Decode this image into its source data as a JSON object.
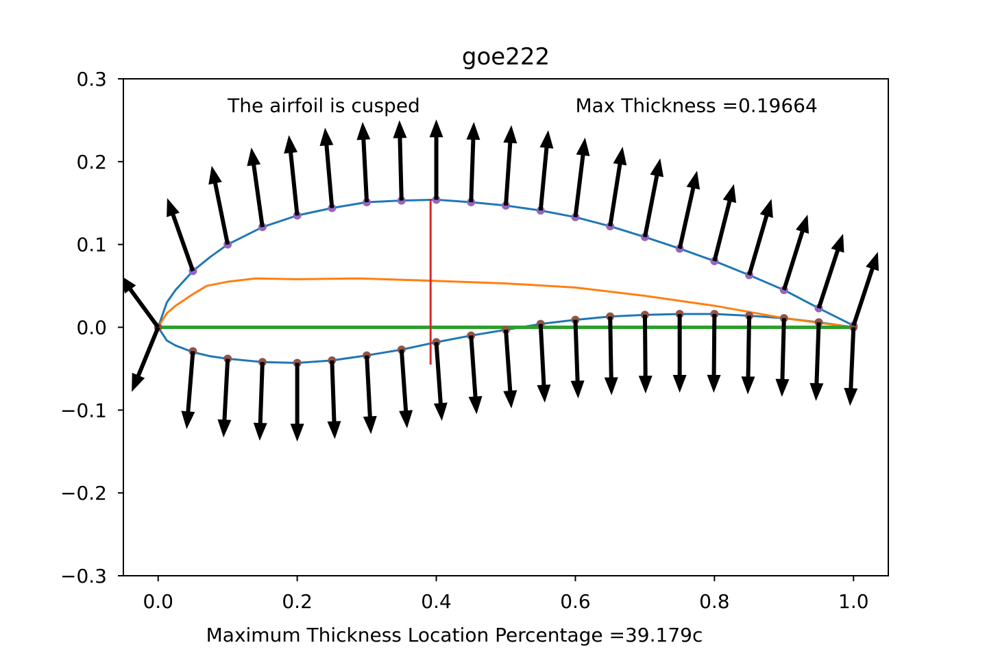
{
  "chart_data": {
    "type": "line",
    "title": "goe222",
    "xlabel": "Maximum Thickness Location Percentage =39.179c",
    "ylabel": "",
    "xlim": [
      -0.05,
      1.05
    ],
    "ylim": [
      -0.3,
      0.3
    ],
    "x_ticks": [
      {
        "value": 0.0,
        "label": "0.0"
      },
      {
        "value": 0.2,
        "label": "0.2"
      },
      {
        "value": 0.4,
        "label": "0.4"
      },
      {
        "value": 0.6,
        "label": "0.6"
      },
      {
        "value": 0.8,
        "label": "0.8"
      },
      {
        "value": 1.0,
        "label": "1.0"
      }
    ],
    "y_ticks": [
      {
        "value": 0.3,
        "label": "0.3"
      },
      {
        "value": 0.2,
        "label": "0.2"
      },
      {
        "value": 0.1,
        "label": "0.1"
      },
      {
        "value": 0.0,
        "label": "0.0"
      },
      {
        "value": -0.1,
        "label": "−0.1"
      },
      {
        "value": -0.2,
        "label": "−0.2"
      },
      {
        "value": -0.3,
        "label": "−0.3"
      }
    ],
    "grid": false,
    "annotations": {
      "cusped": {
        "text": "The airfoil is cusped",
        "x": 0.1,
        "y": 0.26
      },
      "max_thickness": {
        "text": "Max Thickness =0.19664",
        "x": 0.6,
        "y": 0.26
      }
    },
    "series": [
      {
        "role": "upper-surface",
        "color": "#1f77b4",
        "x": [
          0.0,
          0.0125,
          0.025,
          0.05,
          0.075,
          0.1,
          0.15,
          0.2,
          0.25,
          0.3,
          0.35,
          0.4,
          0.45,
          0.5,
          0.55,
          0.6,
          0.65,
          0.7,
          0.75,
          0.8,
          0.85,
          0.9,
          0.95,
          1.0
        ],
        "y": [
          0.0,
          0.03,
          0.045,
          0.068,
          0.085,
          0.1,
          0.121,
          0.135,
          0.144,
          0.151,
          0.153,
          0.154,
          0.151,
          0.147,
          0.141,
          0.133,
          0.122,
          0.109,
          0.095,
          0.08,
          0.063,
          0.045,
          0.023,
          0.002
        ]
      },
      {
        "role": "lower-surface",
        "color": "#1f77b4",
        "x": [
          0.0,
          0.0125,
          0.025,
          0.05,
          0.075,
          0.1,
          0.15,
          0.2,
          0.25,
          0.3,
          0.35,
          0.4,
          0.45,
          0.5,
          0.55,
          0.6,
          0.65,
          0.7,
          0.75,
          0.8,
          0.85,
          0.9,
          0.95,
          1.0
        ],
        "y": [
          0.0,
          -0.016,
          -0.022,
          -0.03,
          -0.035,
          -0.038,
          -0.042,
          -0.043,
          -0.04,
          -0.034,
          -0.027,
          -0.018,
          -0.01,
          -0.003,
          0.004,
          0.009,
          0.013,
          0.015,
          0.016,
          0.016,
          0.014,
          0.011,
          0.006,
          0.0
        ]
      },
      {
        "role": "camber-line",
        "color": "#ff7f0e",
        "x": [
          0.0,
          0.0125,
          0.025,
          0.05,
          0.07,
          0.1,
          0.14,
          0.2,
          0.29,
          0.4,
          0.5,
          0.6,
          0.7,
          0.8,
          0.9,
          1.0
        ],
        "y": [
          0.0,
          0.017,
          0.026,
          0.04,
          0.05,
          0.055,
          0.059,
          0.058,
          0.059,
          0.056,
          0.053,
          0.048,
          0.038,
          0.026,
          0.011,
          0.0
        ]
      },
      {
        "role": "chord-line",
        "color": "#2ca02c",
        "x": [
          0.0,
          1.0
        ],
        "y": [
          0.0,
          0.0
        ]
      },
      {
        "role": "max-thickness-line",
        "color": "#d62728",
        "x": [
          0.39179,
          0.39179
        ],
        "y": [
          -0.045,
          0.155
        ]
      }
    ],
    "upper_points": {
      "color": "#9467bd",
      "x": [
        0.05,
        0.1,
        0.15,
        0.2,
        0.25,
        0.3,
        0.35,
        0.4,
        0.45,
        0.5,
        0.55,
        0.6,
        0.65,
        0.7,
        0.75,
        0.8,
        0.85,
        0.9,
        0.95,
        1.0
      ],
      "y": [
        0.068,
        0.1,
        0.121,
        0.135,
        0.144,
        0.151,
        0.153,
        0.154,
        0.151,
        0.147,
        0.141,
        0.133,
        0.122,
        0.109,
        0.095,
        0.08,
        0.063,
        0.045,
        0.023,
        0.002
      ]
    },
    "lower_points": {
      "color": "#8c564b",
      "x": [
        0.0,
        0.05,
        0.1,
        0.15,
        0.2,
        0.25,
        0.3,
        0.35,
        0.4,
        0.45,
        0.5,
        0.55,
        0.6,
        0.65,
        0.7,
        0.75,
        0.8,
        0.85,
        0.9,
        0.95,
        1.0
      ],
      "y": [
        0.0,
        -0.029,
        -0.038,
        -0.042,
        -0.043,
        -0.04,
        -0.034,
        -0.027,
        -0.018,
        -0.01,
        -0.003,
        0.004,
        0.009,
        0.013,
        0.015,
        0.016,
        0.016,
        0.014,
        0.011,
        0.006,
        0.0
      ]
    },
    "normal_vectors": {
      "color": "#000000",
      "upper": [
        {
          "x": 0.0,
          "y": 0.0,
          "dx": -0.055,
          "dy": 0.063
        },
        {
          "x": 0.05,
          "y": 0.068,
          "dx": -0.037,
          "dy": 0.088
        },
        {
          "x": 0.1,
          "y": 0.1,
          "dx": -0.023,
          "dy": 0.095
        },
        {
          "x": 0.15,
          "y": 0.121,
          "dx": -0.016,
          "dy": 0.096
        },
        {
          "x": 0.2,
          "y": 0.135,
          "dx": -0.012,
          "dy": 0.097
        },
        {
          "x": 0.25,
          "y": 0.144,
          "dx": -0.01,
          "dy": 0.097
        },
        {
          "x": 0.3,
          "y": 0.151,
          "dx": -0.006,
          "dy": 0.097
        },
        {
          "x": 0.35,
          "y": 0.153,
          "dx": -0.003,
          "dy": 0.097
        },
        {
          "x": 0.4,
          "y": 0.154,
          "dx": 0.0,
          "dy": 0.097
        },
        {
          "x": 0.45,
          "y": 0.151,
          "dx": 0.004,
          "dy": 0.097
        },
        {
          "x": 0.5,
          "y": 0.147,
          "dx": 0.008,
          "dy": 0.097
        },
        {
          "x": 0.55,
          "y": 0.141,
          "dx": 0.011,
          "dy": 0.097
        },
        {
          "x": 0.6,
          "y": 0.133,
          "dx": 0.014,
          "dy": 0.096
        },
        {
          "x": 0.65,
          "y": 0.122,
          "dx": 0.018,
          "dy": 0.096
        },
        {
          "x": 0.7,
          "y": 0.109,
          "dx": 0.022,
          "dy": 0.095
        },
        {
          "x": 0.75,
          "y": 0.095,
          "dx": 0.025,
          "dy": 0.094
        },
        {
          "x": 0.8,
          "y": 0.08,
          "dx": 0.028,
          "dy": 0.093
        },
        {
          "x": 0.85,
          "y": 0.063,
          "dx": 0.032,
          "dy": 0.092
        },
        {
          "x": 0.9,
          "y": 0.045,
          "dx": 0.034,
          "dy": 0.091
        },
        {
          "x": 0.95,
          "y": 0.023,
          "dx": 0.035,
          "dy": 0.09
        },
        {
          "x": 1.0,
          "y": 0.002,
          "dx": 0.035,
          "dy": 0.089
        }
      ],
      "lower": [
        {
          "x": 0.0,
          "y": 0.0,
          "dx": -0.038,
          "dy": -0.078
        },
        {
          "x": 0.05,
          "y": -0.029,
          "dx": -0.009,
          "dy": -0.094
        },
        {
          "x": 0.1,
          "y": -0.038,
          "dx": -0.006,
          "dy": -0.095
        },
        {
          "x": 0.15,
          "y": -0.042,
          "dx": -0.004,
          "dy": -0.095
        },
        {
          "x": 0.2,
          "y": -0.043,
          "dx": 0.0,
          "dy": -0.095
        },
        {
          "x": 0.25,
          "y": -0.04,
          "dx": 0.004,
          "dy": -0.095
        },
        {
          "x": 0.3,
          "y": -0.034,
          "dx": 0.006,
          "dy": -0.095
        },
        {
          "x": 0.35,
          "y": -0.027,
          "dx": 0.008,
          "dy": -0.095
        },
        {
          "x": 0.4,
          "y": -0.018,
          "dx": 0.008,
          "dy": -0.095
        },
        {
          "x": 0.45,
          "y": -0.01,
          "dx": 0.008,
          "dy": -0.095
        },
        {
          "x": 0.5,
          "y": -0.003,
          "dx": 0.008,
          "dy": -0.095
        },
        {
          "x": 0.55,
          "y": 0.004,
          "dx": 0.006,
          "dy": -0.095
        },
        {
          "x": 0.6,
          "y": 0.009,
          "dx": 0.004,
          "dy": -0.095
        },
        {
          "x": 0.65,
          "y": 0.013,
          "dx": 0.002,
          "dy": -0.095
        },
        {
          "x": 0.7,
          "y": 0.015,
          "dx": 0.001,
          "dy": -0.095
        },
        {
          "x": 0.75,
          "y": 0.016,
          "dx": 0.0,
          "dy": -0.095
        },
        {
          "x": 0.8,
          "y": 0.016,
          "dx": -0.001,
          "dy": -0.095
        },
        {
          "x": 0.85,
          "y": 0.014,
          "dx": -0.002,
          "dy": -0.095
        },
        {
          "x": 0.9,
          "y": 0.011,
          "dx": -0.003,
          "dy": -0.095
        },
        {
          "x": 0.95,
          "y": 0.006,
          "dx": -0.004,
          "dy": -0.095
        },
        {
          "x": 1.0,
          "y": 0.0,
          "dx": -0.005,
          "dy": -0.095
        }
      ]
    }
  }
}
